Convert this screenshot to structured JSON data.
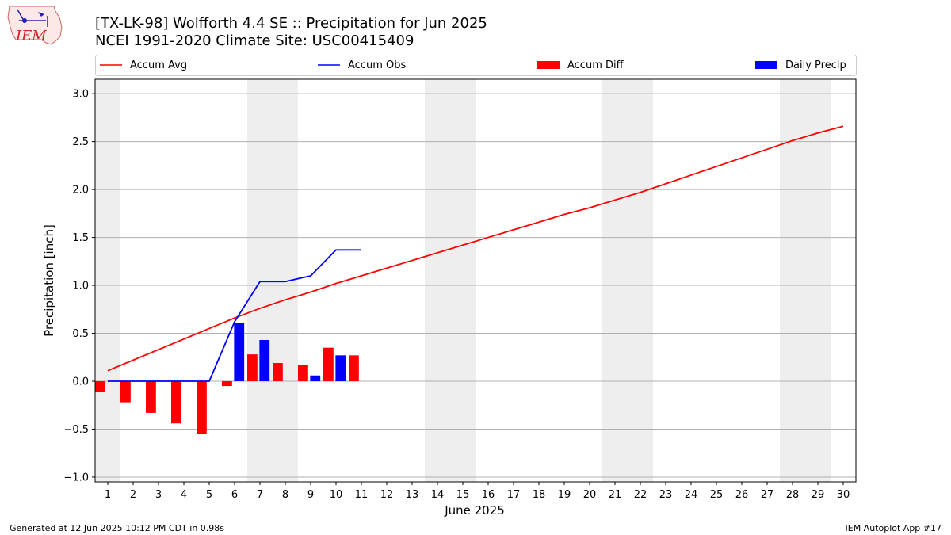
{
  "header": {
    "logo_text": "IEM",
    "title_line1": "[TX-LK-98] Wolfforth 4.4 SE :: Precipitation for Jun 2025",
    "title_line2": "NCEI 1991-2020 Climate Site: USC00415409"
  },
  "legend": {
    "accum_avg": "Accum Avg",
    "accum_obs": "Accum Obs",
    "accum_diff": "Accum Diff",
    "daily_precip": "Daily Precip"
  },
  "footer": {
    "generated": "Generated at 12 Jun 2025 10:12 PM CDT in 0.98s",
    "app": "IEM Autoplot App #17"
  },
  "colors": {
    "accum_avg": "#ff0000",
    "accum_obs": "#0000ff",
    "accum_diff": "#ff0000",
    "daily_precip": "#0000ff",
    "weekend_shade": "#eeeeee",
    "grid": "#b0b0b0"
  },
  "chart_data": {
    "type": "bar",
    "xlabel": "June 2025",
    "ylabel": "Precipitation [inch]",
    "ylim": [
      -1.05,
      3.15
    ],
    "yticks": [
      "−1.0",
      "−0.5",
      "0.0",
      "0.5",
      "1.0",
      "1.5",
      "2.0",
      "2.5",
      "3.0"
    ],
    "ytick_values": [
      -1.0,
      -0.5,
      0.0,
      0.5,
      1.0,
      1.5,
      2.0,
      2.5,
      3.0
    ],
    "days": [
      1,
      2,
      3,
      4,
      5,
      6,
      7,
      8,
      9,
      10,
      11,
      12,
      13,
      14,
      15,
      16,
      17,
      18,
      19,
      20,
      21,
      22,
      23,
      24,
      25,
      26,
      27,
      28,
      29,
      30
    ],
    "weekend_days": [
      1,
      7,
      8,
      14,
      15,
      21,
      22,
      28,
      29
    ],
    "grid": "horizontal",
    "legend_position": "top",
    "series": [
      {
        "name": "Accum Avg",
        "type": "line",
        "x": [
          1,
          2,
          3,
          4,
          5,
          6,
          7,
          8,
          9,
          10,
          11,
          12,
          13,
          14,
          15,
          16,
          17,
          18,
          19,
          20,
          21,
          22,
          23,
          24,
          25,
          26,
          27,
          28,
          29,
          30
        ],
        "values": [
          0.11,
          0.22,
          0.33,
          0.44,
          0.55,
          0.66,
          0.76,
          0.85,
          0.93,
          1.02,
          1.1,
          1.18,
          1.26,
          1.34,
          1.42,
          1.5,
          1.58,
          1.66,
          1.74,
          1.81,
          1.89,
          1.97,
          2.06,
          2.15,
          2.24,
          2.33,
          2.42,
          2.51,
          2.59,
          2.66
        ]
      },
      {
        "name": "Accum Obs",
        "type": "line",
        "x": [
          1,
          2,
          3,
          4,
          5,
          6,
          7,
          8,
          9,
          10,
          11
        ],
        "values": [
          0.0,
          0.0,
          0.0,
          0.0,
          0.0,
          0.62,
          1.04,
          1.04,
          1.1,
          1.37,
          1.37
        ]
      },
      {
        "name": "Accum Diff",
        "type": "bar",
        "x": [
          1,
          2,
          3,
          4,
          5,
          6,
          7,
          8,
          9,
          10,
          11
        ],
        "values": [
          -0.11,
          -0.22,
          -0.33,
          -0.44,
          -0.55,
          -0.05,
          0.28,
          0.19,
          0.17,
          0.35,
          0.27
        ]
      },
      {
        "name": "Daily Precip",
        "type": "bar",
        "x": [
          6,
          7,
          9,
          10
        ],
        "values": [
          0.61,
          0.43,
          0.06,
          0.27
        ]
      }
    ]
  }
}
